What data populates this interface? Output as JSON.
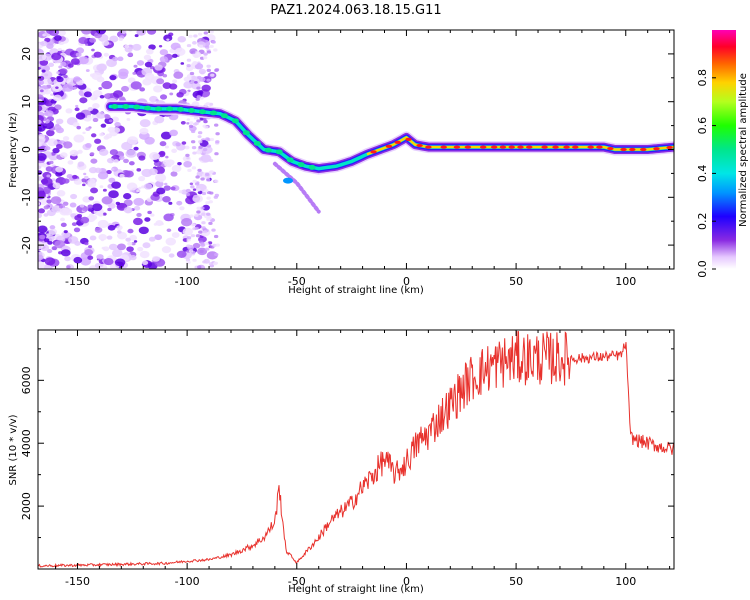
{
  "title": "PAZ1.2024.063.18.15.G11",
  "chart_data": [
    {
      "type": "heatmap",
      "xlabel": "Height of straight line (km)",
      "ylabel": "Frequency (Hz)",
      "xlim": [
        -168,
        122
      ],
      "ylim": [
        -25,
        25
      ],
      "xticks": [
        -150,
        -100,
        -50,
        0,
        50,
        100
      ],
      "yticks": [
        -20,
        -10,
        0,
        10,
        20
      ],
      "colorbar": {
        "label": "Normalized spectral amplitude",
        "range": [
          0,
          1
        ],
        "ticks": [
          "0.0",
          "0.2",
          "0.4",
          "0.6",
          "0.8"
        ],
        "colormap": "gist_ncar-like (white-purple-blue-cyan-green-yellow-red-magenta)"
      },
      "ridge_track": {
        "x": [
          -135,
          -125,
          -115,
          -105,
          -95,
          -85,
          -78,
          -72,
          -65,
          -58,
          -52,
          -46,
          -40,
          -32,
          -25,
          -18,
          -12,
          -6,
          0,
          4,
          10,
          20,
          30,
          40,
          50,
          60,
          70,
          80,
          90,
          95,
          100,
          110,
          122
        ],
        "frequency": [
          9,
          9,
          8.5,
          8.5,
          8,
          7.5,
          6,
          3,
          0,
          -0.5,
          -2.5,
          -3.5,
          -4,
          -3.5,
          -2.5,
          -1,
          0,
          1,
          2.5,
          1,
          0.5,
          0.5,
          0.5,
          0.5,
          0.5,
          0.5,
          0.5,
          0.5,
          0.5,
          0,
          0,
          0,
          0.5
        ]
      },
      "secondary_branch": {
        "x": [
          -60,
          -55,
          -50,
          -45,
          -40
        ],
        "frequency": [
          -3,
          -5,
          -7,
          -10,
          -13
        ]
      }
    },
    {
      "type": "line",
      "xlabel": "Height of straight line (km)",
      "ylabel": "SNR (10 * v/v)",
      "xlim": [
        -168,
        122
      ],
      "ylim": [
        0,
        7600
      ],
      "xticks": [
        -150,
        -100,
        -50,
        0,
        50,
        100
      ],
      "yticks": [
        2000,
        4000,
        6000
      ],
      "series": [
        {
          "color": "#e8322d",
          "x": [
            -168,
            -150,
            -130,
            -110,
            -100,
            -90,
            -80,
            -75,
            -70,
            -65,
            -60,
            -58,
            -55,
            -50,
            -45,
            -40,
            -35,
            -30,
            -25,
            -20,
            -15,
            -10,
            -5,
            0,
            5,
            10,
            15,
            20,
            25,
            30,
            35,
            40,
            50,
            60,
            70,
            80,
            90,
            98,
            100,
            101,
            102,
            105,
            110,
            115,
            122
          ],
          "y": [
            100,
            120,
            150,
            180,
            250,
            300,
            450,
            600,
            750,
            1000,
            1500,
            2600,
            600,
            200,
            600,
            1000,
            1500,
            1800,
            2100,
            2600,
            3000,
            3500,
            3000,
            3400,
            4000,
            4300,
            4800,
            5200,
            5700,
            6100,
            6300,
            6500,
            6700,
            6700,
            6700,
            6700,
            6750,
            6800,
            7200,
            6000,
            4200,
            4100,
            4000,
            3900,
            3800
          ]
        }
      ]
    }
  ]
}
